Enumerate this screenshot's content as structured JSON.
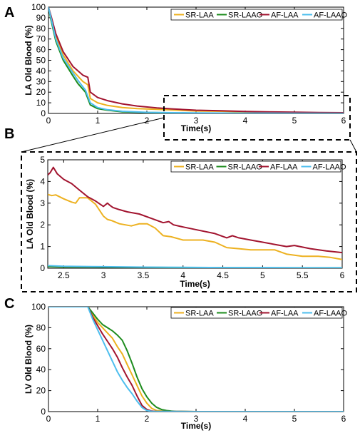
{
  "panel_labels": [
    "A",
    "B",
    "C"
  ],
  "colors": {
    "SR-LAA": "#EDB120",
    "SR-LAAO": "#1E8C1E",
    "AF-LAA": "#A2142F",
    "AF-LAAO": "#4DBEEE"
  },
  "chart_data": [
    {
      "panel": "A",
      "type": "line",
      "ylabel": "LA Old Blood (%)",
      "xlabel": "Time(s)",
      "xlim": [
        0,
        6
      ],
      "ylim": [
        0,
        100
      ],
      "xticks": [
        0,
        1,
        2,
        3,
        4,
        5,
        6
      ],
      "yticks": [
        0,
        10,
        20,
        30,
        40,
        50,
        60,
        70,
        80,
        90,
        100
      ],
      "legend": "top-right",
      "series": [
        {
          "name": "SR-LAA",
          "x": [
            0,
            0.05,
            0.15,
            0.3,
            0.5,
            0.7,
            0.8,
            0.85,
            1.0,
            1.2,
            1.5,
            1.8,
            2.2,
            2.5,
            3,
            3.5,
            4,
            4.5,
            5,
            5.5,
            6
          ],
          "y": [
            100,
            90,
            73,
            55,
            40,
            30,
            27,
            14,
            10,
            7.5,
            5.5,
            4.5,
            3.8,
            3.3,
            2.3,
            2.0,
            1.4,
            1.0,
            0.8,
            0.6,
            0.4
          ]
        },
        {
          "name": "SR-LAAO",
          "x": [
            0,
            0.05,
            0.15,
            0.3,
            0.5,
            0.6,
            0.75,
            0.85,
            1.0,
            1.2,
            1.5,
            2,
            3,
            4,
            5,
            6
          ],
          "y": [
            100,
            88,
            68,
            50,
            35,
            28,
            20,
            8,
            4.5,
            3,
            1.5,
            0.8,
            0.3,
            0.2,
            0.1,
            0.1
          ]
        },
        {
          "name": "AF-LAA",
          "x": [
            0,
            0.05,
            0.15,
            0.3,
            0.5,
            0.7,
            0.8,
            0.85,
            1.0,
            1.2,
            1.5,
            1.8,
            2.2,
            2.5,
            3,
            3.5,
            4,
            4.5,
            5,
            5.5,
            6
          ],
          "y": [
            100,
            92,
            75,
            58,
            44,
            36,
            34,
            20,
            15,
            12,
            9,
            7,
            5.2,
            4.3,
            3.0,
            2.5,
            1.8,
            1.4,
            1.2,
            0.9,
            0.7
          ]
        },
        {
          "name": "AF-LAAO",
          "x": [
            0,
            0.05,
            0.15,
            0.3,
            0.5,
            0.6,
            0.75,
            0.85,
            1.0,
            1.2,
            1.5,
            2,
            3,
            4,
            5,
            6
          ],
          "y": [
            100,
            90,
            70,
            52,
            38,
            31,
            22,
            10,
            5.5,
            3.5,
            2,
            1,
            0.5,
            0.3,
            0.2,
            0.1
          ]
        }
      ]
    },
    {
      "panel": "B",
      "type": "line",
      "ylabel": "LA Old Blood (%)",
      "xlabel": "Time(s)",
      "xlim": [
        2.3,
        6
      ],
      "ylim": [
        0,
        5
      ],
      "xticks": [
        2.5,
        3,
        3.5,
        4,
        4.5,
        5,
        5.5,
        6
      ],
      "yticks": [
        0,
        1,
        2,
        3,
        4,
        5
      ],
      "legend": "top-right",
      "series": [
        {
          "name": "SR-LAA",
          "x": [
            2.3,
            2.35,
            2.4,
            2.5,
            2.6,
            2.65,
            2.7,
            2.8,
            2.9,
            3.0,
            3.05,
            3.1,
            3.2,
            3.35,
            3.45,
            3.55,
            3.65,
            3.75,
            3.85,
            4.0,
            4.1,
            4.25,
            4.4,
            4.55,
            4.7,
            4.85,
            5.0,
            5.15,
            5.3,
            5.5,
            5.7,
            5.85,
            6.0
          ],
          "y": [
            3.4,
            3.35,
            3.38,
            3.2,
            3.05,
            3.0,
            3.25,
            3.25,
            2.95,
            2.4,
            2.25,
            2.2,
            2.05,
            1.95,
            2.05,
            2.05,
            1.85,
            1.5,
            1.45,
            1.3,
            1.3,
            1.3,
            1.2,
            0.95,
            0.9,
            0.85,
            0.85,
            0.85,
            0.65,
            0.55,
            0.55,
            0.5,
            0.4
          ]
        },
        {
          "name": "SR-LAAO",
          "x": [
            2.3,
            2.5,
            3,
            3.5,
            4,
            4.5,
            5,
            5.5,
            6
          ],
          "y": [
            0.08,
            0.06,
            0.05,
            0.04,
            0.03,
            0.03,
            0.02,
            0.02,
            0.02
          ]
        },
        {
          "name": "AF-LAA",
          "x": [
            2.3,
            2.33,
            2.37,
            2.42,
            2.5,
            2.6,
            2.7,
            2.8,
            2.9,
            3.0,
            3.05,
            3.08,
            3.12,
            3.2,
            3.3,
            3.45,
            3.6,
            3.75,
            3.82,
            3.88,
            4.0,
            4.2,
            4.4,
            4.55,
            4.62,
            4.7,
            4.85,
            5.0,
            5.15,
            5.3,
            5.4,
            5.6,
            5.8,
            6.0
          ],
          "y": [
            4.3,
            4.4,
            4.65,
            4.35,
            4.1,
            3.9,
            3.6,
            3.3,
            3.1,
            2.85,
            3.0,
            2.9,
            2.8,
            2.7,
            2.6,
            2.5,
            2.3,
            2.1,
            2.15,
            2.0,
            1.9,
            1.75,
            1.6,
            1.4,
            1.5,
            1.4,
            1.3,
            1.2,
            1.1,
            1.0,
            1.05,
            0.9,
            0.8,
            0.72
          ]
        },
        {
          "name": "AF-LAAO",
          "x": [
            2.3,
            2.5,
            3,
            3.5,
            4,
            4.5,
            5,
            5.5,
            6
          ],
          "y": [
            0.12,
            0.09,
            0.07,
            0.05,
            0.04,
            0.03,
            0.03,
            0.02,
            0.02
          ]
        }
      ]
    },
    {
      "panel": "C",
      "type": "line",
      "ylabel": "LV Old Blood (%)",
      "xlabel": "Time(s)",
      "xlim": [
        0,
        6
      ],
      "ylim": [
        0,
        100
      ],
      "xticks": [
        0,
        1,
        2,
        3,
        4,
        5,
        6
      ],
      "yticks": [
        0,
        20,
        40,
        60,
        80,
        100
      ],
      "legend": "top-right",
      "series": [
        {
          "name": "SR-LAA",
          "x": [
            0,
            0.8,
            0.9,
            1.0,
            1.1,
            1.2,
            1.3,
            1.4,
            1.5,
            1.6,
            1.7,
            1.8,
            1.9,
            2.0,
            2.1,
            2.2,
            2.4,
            2.6,
            3,
            6
          ],
          "y": [
            100,
            100,
            92,
            85,
            80,
            75,
            70,
            62,
            55,
            45,
            35,
            25,
            15,
            8,
            3,
            1,
            0.3,
            0.1,
            0,
            0
          ]
        },
        {
          "name": "SR-LAAO",
          "x": [
            0,
            0.8,
            0.9,
            1.0,
            1.1,
            1.2,
            1.3,
            1.4,
            1.5,
            1.6,
            1.7,
            1.8,
            1.9,
            2.0,
            2.1,
            2.2,
            2.3,
            2.4,
            2.5,
            2.6,
            3,
            6
          ],
          "y": [
            100,
            100,
            94,
            88,
            83,
            80,
            77,
            73,
            68,
            58,
            46,
            33,
            22,
            14,
            8,
            4,
            2,
            1,
            0.5,
            0.2,
            0,
            0
          ]
        },
        {
          "name": "AF-LAA",
          "x": [
            0,
            0.8,
            0.9,
            1.0,
            1.1,
            1.2,
            1.3,
            1.4,
            1.5,
            1.6,
            1.7,
            1.8,
            1.9,
            2.0,
            2.1,
            2.2,
            3,
            6
          ],
          "y": [
            100,
            100,
            90,
            82,
            74,
            67,
            60,
            52,
            42,
            33,
            25,
            15,
            6,
            2,
            0.5,
            0.2,
            0,
            0
          ]
        },
        {
          "name": "AF-LAAO",
          "x": [
            0,
            0.8,
            0.9,
            1.0,
            1.1,
            1.2,
            1.3,
            1.4,
            1.5,
            1.6,
            1.7,
            1.8,
            1.9,
            2.0,
            2.1,
            3,
            6
          ],
          "y": [
            100,
            100,
            88,
            78,
            68,
            58,
            48,
            38,
            30,
            23,
            17,
            10,
            4,
            1,
            0.3,
            0,
            0
          ]
        }
      ]
    }
  ]
}
